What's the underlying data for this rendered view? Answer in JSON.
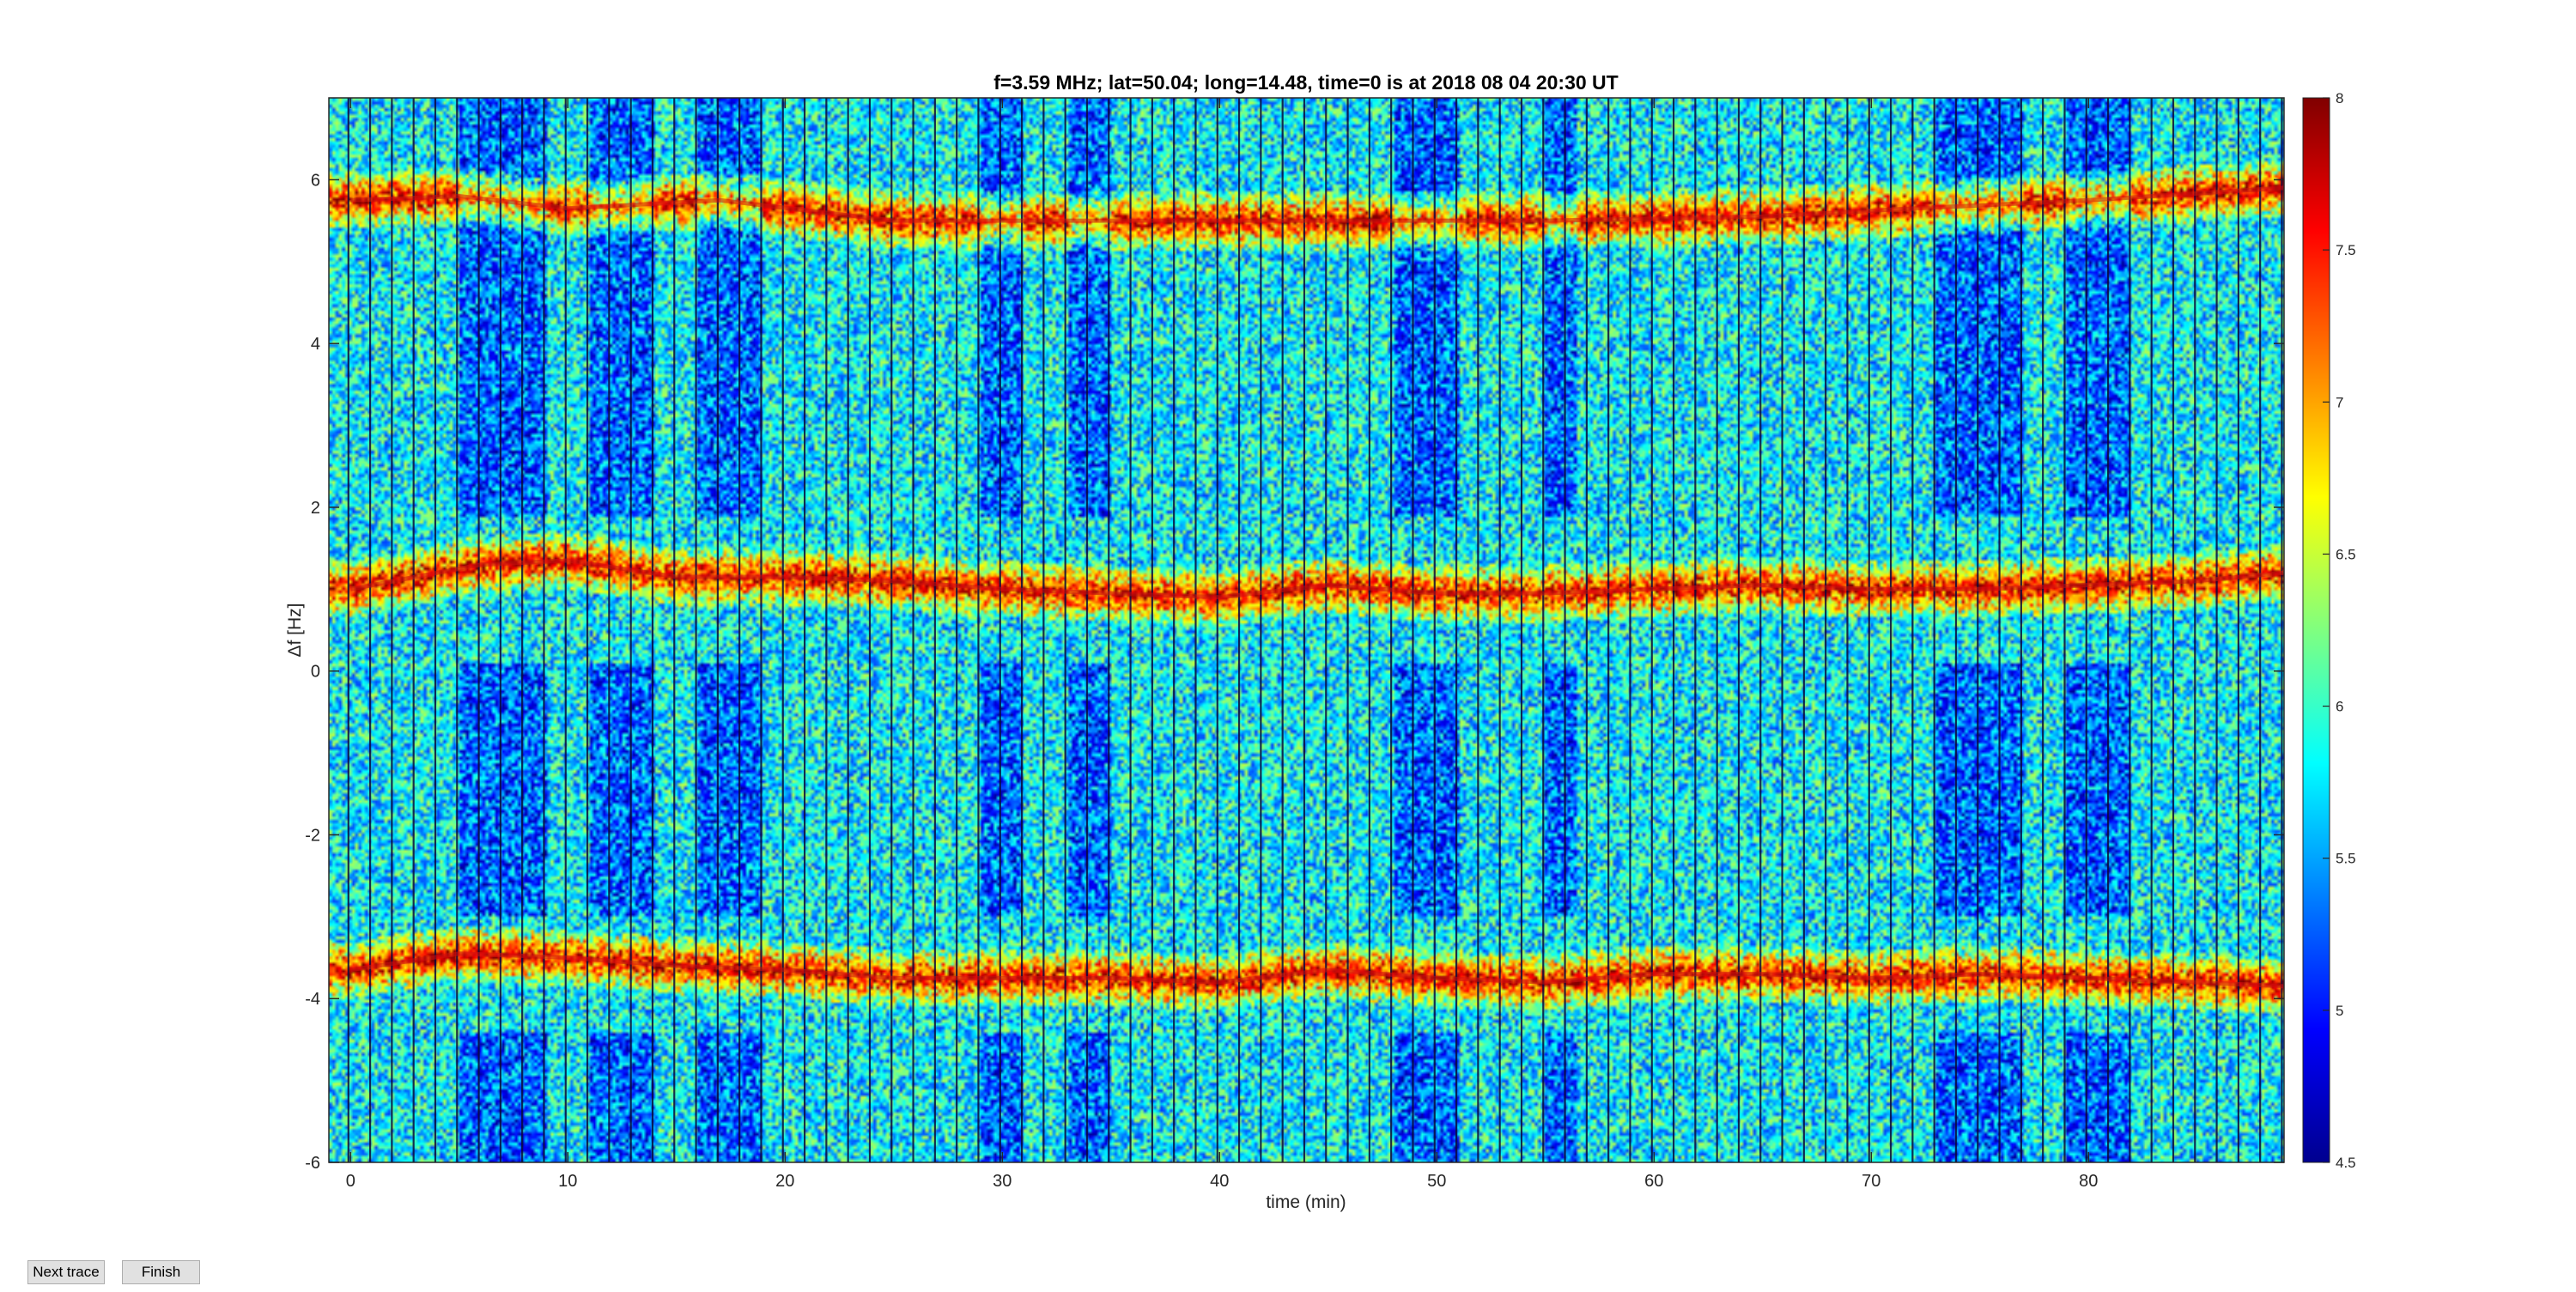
{
  "chart_data": {
    "type": "heatmap",
    "title": "f=3.59 MHz;  lat=50.04; long=14.48, time=0 is at 2018 08 04 20:30 UT",
    "xlabel": "time (min)",
    "ylabel": "Δf [Hz]",
    "xlim": [
      -1,
      89
    ],
    "ylim": [
      -6,
      7
    ],
    "xticks": [
      0,
      10,
      20,
      30,
      40,
      50,
      60,
      70,
      80
    ],
    "yticks": [
      -6,
      -4,
      -2,
      0,
      2,
      4,
      6
    ],
    "colorbar": {
      "range": [
        4.5,
        8
      ],
      "ticks": [
        4.5,
        5,
        5.5,
        6,
        6.5,
        7,
        7.5,
        8
      ],
      "colormap": "jet"
    },
    "colormap_stops": [
      "#00008f",
      "#0000ff",
      "#00ffff",
      "#ffff00",
      "#ff0000",
      "#800000"
    ],
    "ridges": [
      {
        "name": "",
        "points": [
          [
            0,
            5.75
          ],
          [
            5,
            5.8
          ],
          [
            10,
            5.65
          ],
          [
            17,
            5.75
          ],
          [
            25,
            5.5
          ],
          [
            35,
            5.5
          ],
          [
            45,
            5.5
          ],
          [
            55,
            5.5
          ],
          [
            65,
            5.55
          ],
          [
            72,
            5.65
          ],
          [
            80,
            5.75
          ],
          [
            89,
            5.9
          ]
        ]
      },
      {
        "name": "",
        "points": [
          [
            0,
            1.0
          ],
          [
            3,
            1.15
          ],
          [
            6,
            1.3
          ],
          [
            10,
            1.35
          ],
          [
            15,
            1.15
          ],
          [
            20,
            1.15
          ],
          [
            25,
            1.1
          ],
          [
            30,
            1.0
          ],
          [
            35,
            0.95
          ],
          [
            40,
            0.9
          ],
          [
            45,
            1.05
          ],
          [
            50,
            0.95
          ],
          [
            55,
            0.95
          ],
          [
            60,
            1.0
          ],
          [
            65,
            1.05
          ],
          [
            70,
            1.0
          ],
          [
            75,
            1.0
          ],
          [
            80,
            1.05
          ],
          [
            85,
            1.1
          ],
          [
            89,
            1.2
          ]
        ]
      },
      {
        "name": "",
        "points": [
          [
            0,
            -3.65
          ],
          [
            5,
            -3.45
          ],
          [
            10,
            -3.5
          ],
          [
            15,
            -3.6
          ],
          [
            20,
            -3.65
          ],
          [
            25,
            -3.75
          ],
          [
            30,
            -3.75
          ],
          [
            35,
            -3.75
          ],
          [
            40,
            -3.8
          ],
          [
            45,
            -3.65
          ],
          [
            50,
            -3.75
          ],
          [
            55,
            -3.8
          ],
          [
            60,
            -3.7
          ],
          [
            65,
            -3.7
          ],
          [
            70,
            -3.75
          ],
          [
            75,
            -3.7
          ],
          [
            80,
            -3.75
          ],
          [
            85,
            -3.8
          ],
          [
            89,
            -3.85
          ]
        ]
      }
    ],
    "baseline_level": 5.8
  },
  "buttons": {
    "next_trace": "Next trace",
    "finish": "Finish"
  }
}
